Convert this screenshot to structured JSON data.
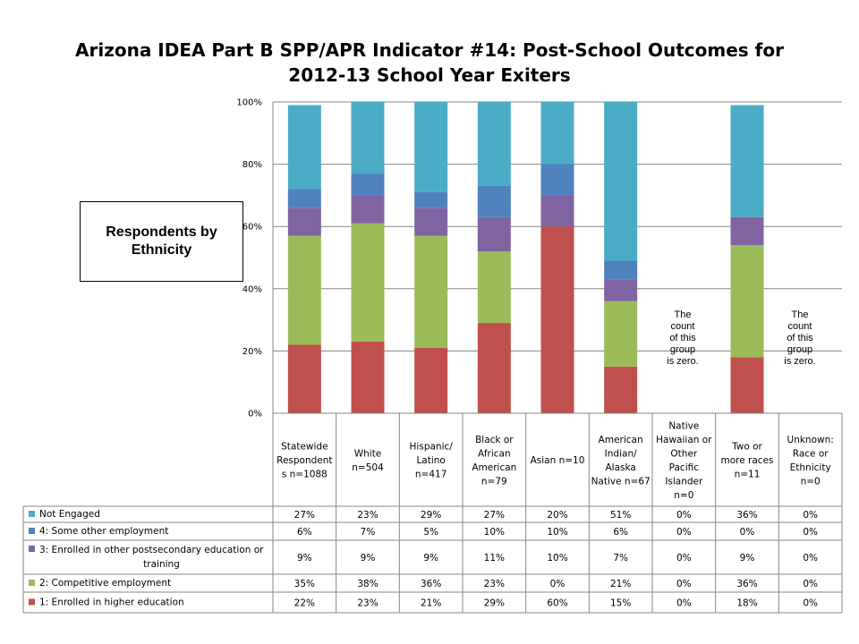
{
  "title": {
    "line1": "Arizona IDEA Part B SPP/APR Indicator #14: Post-School Outcomes for",
    "line2": "2012-13 School Year Exiters"
  },
  "callout": {
    "line1": "Respondents by",
    "line2": "Ethnicity"
  },
  "zero_note": {
    "lines": [
      "The",
      "count",
      "of this",
      "group",
      "is zero."
    ]
  },
  "colors": {
    "not_engaged": "#4BACC6",
    "some_other_employment": "#4F81BD",
    "postsecondary": "#8064A2",
    "competitive_employment": "#9BBB59",
    "higher_education": "#C0504D"
  },
  "chart_data": {
    "type": "bar",
    "stacked": true,
    "percent": true,
    "ylim": [
      0,
      100
    ],
    "yticks": [
      "0%",
      "20%",
      "40%",
      "60%",
      "80%",
      "100%"
    ],
    "grid": true,
    "legend_placement": "data-table",
    "categories": [
      [
        "Statewide",
        "Respondent",
        "s n=1088"
      ],
      [
        "White",
        "n=504"
      ],
      [
        "Hispanic/",
        "Latino",
        "n=417"
      ],
      [
        "Black or",
        "African",
        "American",
        "n=79"
      ],
      [
        "Asian n=10"
      ],
      [
        "American",
        "Indian/",
        "Alaska",
        "Native n=67"
      ],
      [
        "Native",
        "Hawaiian or",
        "Other",
        "Pacific",
        "Islander",
        "n=0"
      ],
      [
        "Two or",
        "more races",
        "n=11"
      ],
      [
        "Unknown:",
        "Race or",
        "Ethnicity",
        "n=0"
      ]
    ],
    "series": [
      {
        "name": "Not Engaged",
        "color": "#4BACC6",
        "values": [
          27,
          23,
          29,
          27,
          20,
          51,
          0,
          36,
          0
        ]
      },
      {
        "name": "4: Some other employment",
        "color": "#4F81BD",
        "values": [
          6,
          7,
          5,
          10,
          10,
          6,
          0,
          0,
          0
        ]
      },
      {
        "name": "3: Enrolled in other postsecondary education or training",
        "color": "#8064A2",
        "values": [
          9,
          9,
          9,
          11,
          10,
          7,
          0,
          9,
          0
        ]
      },
      {
        "name": "2: Competitive employment",
        "color": "#9BBB59",
        "values": [
          35,
          38,
          36,
          23,
          0,
          21,
          0,
          36,
          0
        ]
      },
      {
        "name": "1: Enrolled in higher education",
        "color": "#C0504D",
        "values": [
          22,
          23,
          21,
          29,
          60,
          15,
          0,
          18,
          0
        ]
      }
    ],
    "table": {
      "rows": [
        [
          "27%",
          "23%",
          "29%",
          "27%",
          "20%",
          "51%",
          "0%",
          "36%",
          "0%"
        ],
        [
          "6%",
          "7%",
          "5%",
          "10%",
          "10%",
          "6%",
          "0%",
          "0%",
          "0%"
        ],
        [
          "9%",
          "9%",
          "9%",
          "11%",
          "10%",
          "7%",
          "0%",
          "9%",
          "0%"
        ],
        [
          "35%",
          "38%",
          "36%",
          "23%",
          "0%",
          "21%",
          "0%",
          "36%",
          "0%"
        ],
        [
          "22%",
          "23%",
          "21%",
          "29%",
          "60%",
          "15%",
          "0%",
          "18%",
          "0%"
        ]
      ]
    }
  }
}
